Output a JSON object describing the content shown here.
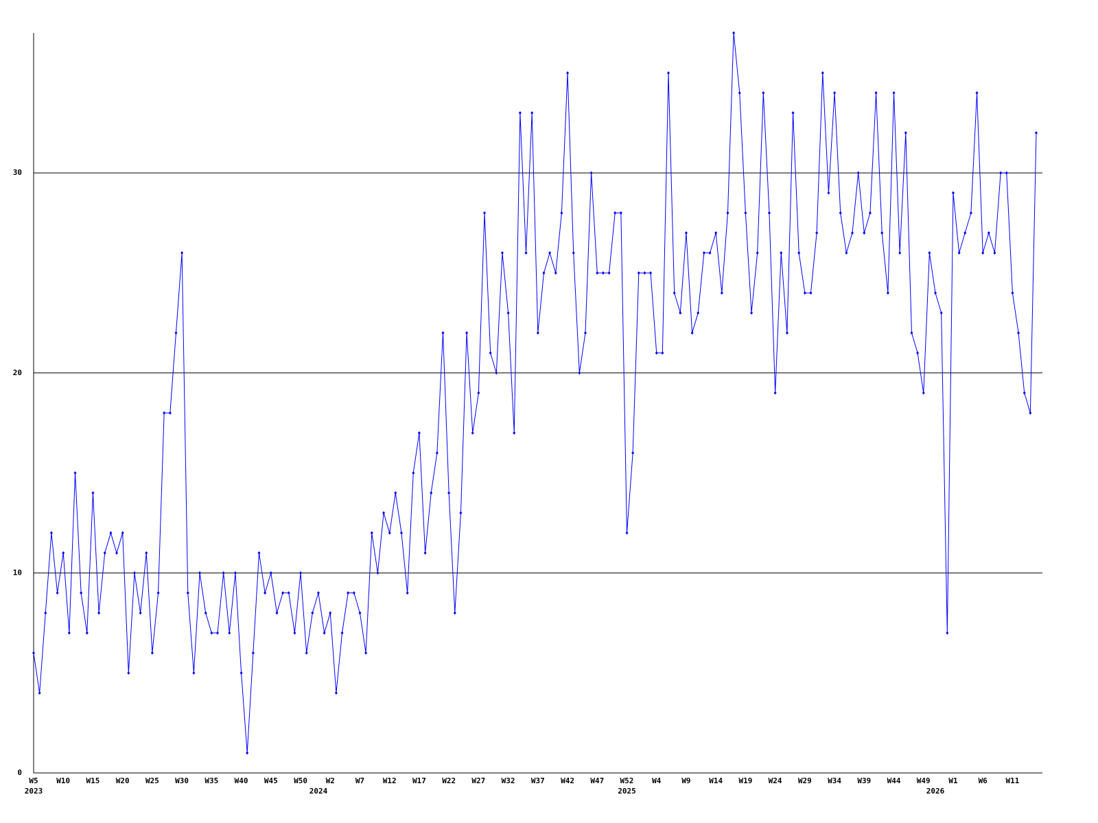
{
  "chart_data": {
    "type": "line",
    "categories": [
      "W5",
      null,
      null,
      null,
      null,
      "W10",
      null,
      null,
      null,
      null,
      "W15",
      null,
      null,
      null,
      null,
      "W20",
      null,
      null,
      null,
      null,
      "W25",
      null,
      null,
      null,
      null,
      "W30",
      null,
      null,
      null,
      null,
      "W35",
      null,
      null,
      null,
      null,
      "W40",
      null,
      null,
      null,
      null,
      "W45",
      null,
      null,
      null,
      null,
      "W50",
      null,
      null,
      null,
      null,
      "W2",
      null,
      null,
      null,
      null,
      "W7",
      null,
      null,
      null,
      null,
      "W12",
      null,
      null,
      null,
      null,
      "W17",
      null,
      null,
      null,
      null,
      "W22",
      null,
      null,
      null,
      null,
      "W27",
      null,
      null,
      null,
      null,
      "W32",
      null,
      null,
      null,
      null,
      "W37",
      null,
      null,
      null,
      null,
      "W42",
      null,
      null,
      null,
      null,
      "W47",
      null,
      null,
      null,
      null,
      "W52",
      null,
      null,
      null,
      null,
      "W4",
      null,
      null,
      null,
      null,
      "W9",
      null,
      null,
      null,
      null,
      "W14",
      null,
      null,
      null,
      null,
      "W19",
      null,
      null,
      null,
      null,
      "W24",
      null,
      null,
      null,
      null,
      "W29",
      null,
      null,
      null,
      null,
      "W34",
      null,
      null,
      null,
      null,
      "W39",
      null,
      null,
      null,
      null,
      "W44",
      null,
      null,
      null,
      null,
      "W49",
      null,
      null,
      null,
      null,
      "W1",
      null,
      null,
      null,
      null,
      "W6",
      null,
      null,
      null,
      null,
      "W11",
      null,
      null,
      null,
      null
    ],
    "year_labels": [
      "2023",
      null,
      null,
      null,
      null,
      null,
      null,
      null,
      null,
      null,
      null,
      null,
      null,
      null,
      null,
      null,
      null,
      null,
      null,
      null,
      null,
      null,
      null,
      null,
      null,
      null,
      null,
      null,
      null,
      null,
      null,
      null,
      null,
      null,
      null,
      null,
      null,
      null,
      null,
      null,
      null,
      null,
      null,
      null,
      null,
      null,
      null,
      null,
      "2024",
      null,
      null,
      null,
      null,
      null,
      null,
      null,
      null,
      null,
      null,
      null,
      null,
      null,
      null,
      null,
      null,
      null,
      null,
      null,
      null,
      null,
      null,
      null,
      null,
      null,
      null,
      null,
      null,
      null,
      null,
      null,
      null,
      null,
      null,
      null,
      null,
      null,
      null,
      null,
      null,
      null,
      null,
      null,
      null,
      null,
      null,
      null,
      null,
      null,
      null,
      null,
      "2025",
      null,
      null,
      null,
      null,
      null,
      null,
      null,
      null,
      null,
      null,
      null,
      null,
      null,
      null,
      null,
      null,
      null,
      null,
      null,
      null,
      null,
      null,
      null,
      null,
      null,
      null,
      null,
      null,
      null,
      null,
      null,
      null,
      null,
      null,
      null,
      null,
      null,
      null,
      null,
      null,
      null,
      null,
      null,
      null,
      null,
      null,
      null,
      null,
      null,
      null,
      null,
      "2026",
      null,
      null,
      null,
      null,
      null,
      null,
      null,
      null,
      null,
      null,
      null,
      null,
      null,
      null
    ],
    "values": [
      6,
      4,
      8,
      12,
      9,
      11,
      7,
      15,
      9,
      7,
      14,
      8,
      11,
      12,
      11,
      12,
      5,
      10,
      8,
      11,
      6,
      9,
      18,
      18,
      22,
      26,
      9,
      5,
      10,
      8,
      7,
      7,
      10,
      7,
      10,
      5,
      1,
      6,
      11,
      9,
      10,
      8,
      9,
      9,
      7,
      10,
      6,
      8,
      9,
      7,
      8,
      4,
      7,
      9,
      9,
      8,
      6,
      12,
      10,
      13,
      12,
      14,
      12,
      9,
      15,
      17,
      11,
      14,
      16,
      22,
      14,
      8,
      13,
      22,
      17,
      19,
      28,
      21,
      20,
      26,
      23,
      17,
      33,
      26,
      33,
      22,
      25,
      26,
      25,
      28,
      35,
      26,
      20,
      22,
      30,
      25,
      25,
      25,
      28,
      28,
      12,
      16,
      25,
      25,
      25,
      21,
      21,
      35,
      24,
      23,
      27,
      22,
      23,
      26,
      26,
      27,
      24,
      28,
      37,
      34,
      28,
      23,
      26,
      34,
      28,
      19,
      26,
      22,
      33,
      26,
      24,
      24,
      27,
      35,
      29,
      34,
      28,
      26,
      27,
      30,
      27,
      28,
      34,
      27,
      24,
      34,
      26,
      32,
      22,
      21,
      19,
      26,
      24,
      23,
      7,
      29,
      26,
      27,
      28,
      34,
      26,
      27,
      26,
      30,
      30,
      24,
      22,
      19,
      18,
      32
    ],
    "color": "#0000ff",
    "ylim": [
      0,
      37
    ],
    "yticks": [
      0,
      10,
      20,
      30
    ],
    "grid": true
  }
}
